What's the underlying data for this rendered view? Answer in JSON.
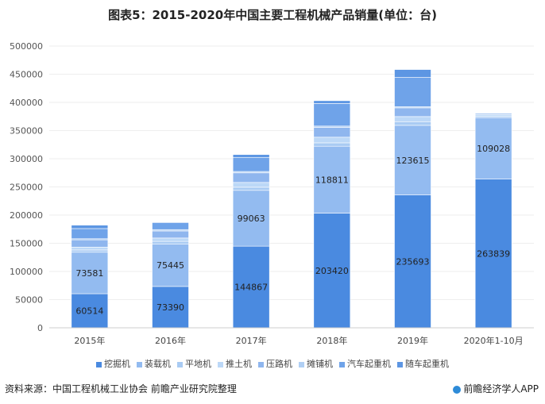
{
  "title": "图表5：2015-2020年中国主要工程机械产品销量(单位：台)",
  "footer": {
    "source": "资料来源：中国工程机械工业协会 前瞻产业研究院整理",
    "brand": "前瞻经济学人APP"
  },
  "chart_data": {
    "type": "bar",
    "stacked": true,
    "title": "图表5：2015-2020年中国主要工程机械产品销量(单位：台)",
    "xlabel": "",
    "ylabel": "",
    "ylim": [
      0,
      500000
    ],
    "yticks": [
      0,
      50000,
      100000,
      150000,
      200000,
      250000,
      300000,
      350000,
      400000,
      450000,
      500000
    ],
    "categories": [
      "2015年",
      "2016年",
      "2017年",
      "2018年",
      "2019年",
      "2020年1-10月"
    ],
    "legend_position": "bottom",
    "series": [
      {
        "name": "挖掘机",
        "color": "#4a8ae0",
        "values": [
          60514,
          73390,
          144867,
          203420,
          235693,
          263839
        ],
        "labeled": true
      },
      {
        "name": "装载机",
        "color": "#93bbf0",
        "values": [
          73581,
          75445,
          99063,
          118811,
          123615,
          109028
        ],
        "labeled": true
      },
      {
        "name": "平地机",
        "color": "#a9cbf3",
        "values": [
          4000,
          4500,
          5500,
          6000,
          6500,
          2500
        ],
        "labeled": false
      },
      {
        "name": "推土机",
        "color": "#bcd8f7",
        "values": [
          5000,
          6000,
          8500,
          10000,
          9000,
          3000
        ],
        "labeled": false
      },
      {
        "name": "压路机",
        "color": "#8fb6ee",
        "values": [
          13000,
          12500,
          17000,
          17500,
          15500,
          2000
        ],
        "labeled": false
      },
      {
        "name": "摊铺机",
        "color": "#b0cff4",
        "values": [
          2000,
          2500,
          2500,
          2300,
          2000,
          0
        ],
        "labeled": false
      },
      {
        "name": "汽车起重机",
        "color": "#6fa3e9",
        "values": [
          18000,
          12000,
          25000,
          40000,
          52000,
          0
        ],
        "labeled": false
      },
      {
        "name": "随车起重机",
        "color": "#5d96e3",
        "values": [
          6000,
          1200,
          5000,
          5000,
          14000,
          0
        ],
        "labeled": false
      }
    ]
  }
}
